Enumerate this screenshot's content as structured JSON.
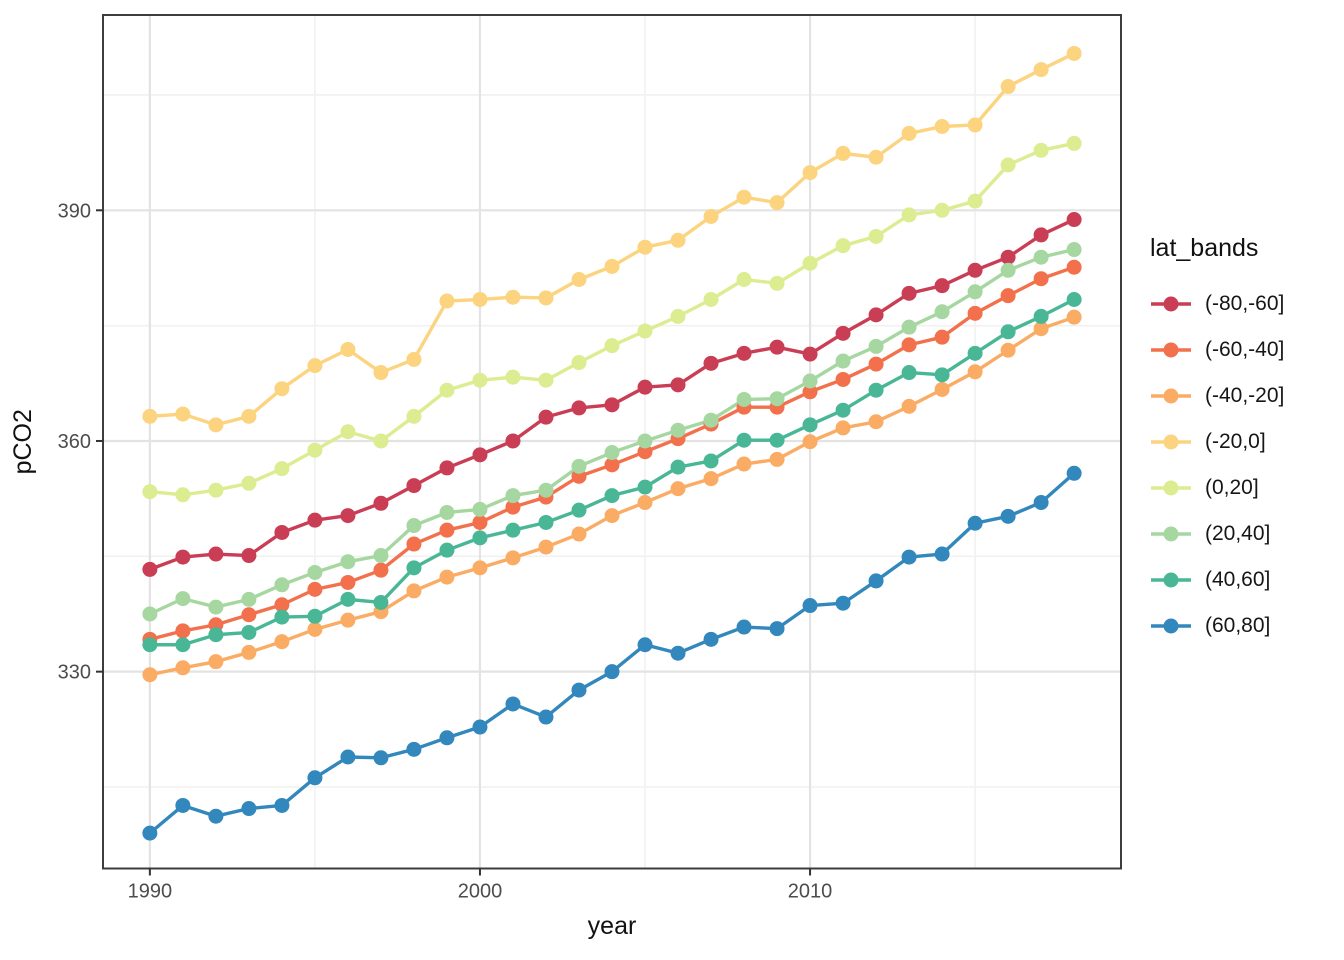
{
  "chart_data": {
    "type": "line",
    "title": "",
    "xlabel": "year",
    "ylabel": "pCO2",
    "legend_title": "lat_bands",
    "legend_position": "right",
    "grid": true,
    "xlim": [
      1988.58,
      2019.42
    ],
    "ylim": [
      304.4,
      415.4
    ],
    "x_ticks": [
      1990,
      2000,
      2010
    ],
    "x_minor": [
      1995,
      2005,
      2015
    ],
    "y_ticks": [
      330,
      360,
      390
    ],
    "y_minor": [
      315,
      345,
      375,
      405
    ],
    "x": [
      1990,
      1991,
      1992,
      1993,
      1994,
      1995,
      1996,
      1997,
      1998,
      1999,
      2000,
      2001,
      2002,
      2003,
      2004,
      2005,
      2006,
      2007,
      2008,
      2009,
      2010,
      2011,
      2012,
      2013,
      2014,
      2015,
      2016,
      2017,
      2018
    ],
    "series": [
      {
        "name": "(-80,-60]",
        "color": "#C93E54",
        "values": [
          343.3,
          344.9,
          345.3,
          345.1,
          348.1,
          349.7,
          350.3,
          351.9,
          354.2,
          356.5,
          358.2,
          360.0,
          363.1,
          364.3,
          364.7,
          367.0,
          367.3,
          370.1,
          371.4,
          372.2,
          371.3,
          374.0,
          376.4,
          379.2,
          380.2,
          382.2,
          383.9,
          386.8,
          388.8
        ]
      },
      {
        "name": "(-60,-40]",
        "color": "#F2704B",
        "values": [
          334.2,
          335.3,
          336.1,
          337.4,
          338.7,
          340.7,
          341.6,
          343.2,
          346.6,
          348.4,
          349.4,
          351.4,
          352.7,
          355.4,
          356.9,
          358.6,
          360.3,
          362.2,
          364.4,
          364.4,
          366.4,
          368.0,
          370.0,
          372.5,
          373.5,
          376.6,
          378.9,
          381.1,
          382.6
        ]
      },
      {
        "name": "(-40,-20]",
        "color": "#FAAC64",
        "values": [
          329.6,
          330.5,
          331.3,
          332.5,
          333.9,
          335.5,
          336.7,
          337.8,
          340.5,
          342.3,
          343.5,
          344.8,
          346.2,
          347.9,
          350.3,
          352.0,
          353.8,
          355.1,
          357.0,
          357.6,
          359.9,
          361.7,
          362.5,
          364.5,
          366.7,
          369.0,
          371.8,
          374.6,
          376.1
        ]
      },
      {
        "name": "(-20,0]",
        "color": "#FCD37E",
        "values": [
          363.2,
          363.5,
          362.1,
          363.2,
          366.8,
          369.8,
          371.9,
          368.9,
          370.6,
          378.2,
          378.4,
          378.7,
          378.6,
          381.0,
          382.7,
          385.2,
          386.1,
          389.2,
          391.7,
          391.0,
          394.9,
          397.4,
          396.9,
          400.0,
          400.9,
          401.1,
          406.1,
          408.3,
          410.4
        ]
      },
      {
        "name": "(0,20]",
        "color": "#DCEC90",
        "values": [
          353.4,
          353.0,
          353.6,
          354.5,
          356.4,
          358.8,
          361.2,
          360.0,
          363.2,
          366.6,
          367.9,
          368.3,
          367.9,
          370.2,
          372.4,
          374.3,
          376.2,
          378.4,
          381.0,
          380.5,
          383.1,
          385.4,
          386.6,
          389.4,
          390.0,
          391.2,
          395.9,
          397.8,
          398.7
        ]
      },
      {
        "name": "(20,40]",
        "color": "#A6D7A0",
        "values": [
          337.5,
          339.5,
          338.4,
          339.4,
          341.3,
          342.9,
          344.3,
          345.1,
          349.0,
          350.7,
          351.1,
          352.9,
          353.6,
          356.7,
          358.5,
          360.0,
          361.4,
          362.7,
          365.4,
          365.5,
          367.8,
          370.4,
          372.3,
          374.8,
          376.8,
          379.4,
          382.2,
          383.9,
          384.9
        ]
      },
      {
        "name": "(40,60]",
        "color": "#49B795",
        "values": [
          333.5,
          333.5,
          334.8,
          335.1,
          337.1,
          337.2,
          339.4,
          339.0,
          343.5,
          345.8,
          347.4,
          348.4,
          349.4,
          351.0,
          352.9,
          354.0,
          356.6,
          357.4,
          360.1,
          360.1,
          362.1,
          364.0,
          366.6,
          368.9,
          368.6,
          371.4,
          374.2,
          376.2,
          378.4
        ]
      },
      {
        "name": "(60,80]",
        "color": "#3287BC",
        "values": [
          309.0,
          312.6,
          311.2,
          312.2,
          312.6,
          316.2,
          318.9,
          318.8,
          319.9,
          321.4,
          322.8,
          325.8,
          324.1,
          327.6,
          330.0,
          333.5,
          332.4,
          334.2,
          335.8,
          335.6,
          338.6,
          338.9,
          341.8,
          344.9,
          345.3,
          349.3,
          350.2,
          352.0,
          355.8
        ]
      }
    ]
  },
  "style": {
    "background": "#FFFFFF",
    "panel_border": "#3D3D3D",
    "grid_major": "#E3E3E3",
    "grid_minor": "#F1F1F1",
    "tick_color": "#333333",
    "tick_label_color": "#4D4D4D",
    "axis_title_color": "#111111"
  }
}
